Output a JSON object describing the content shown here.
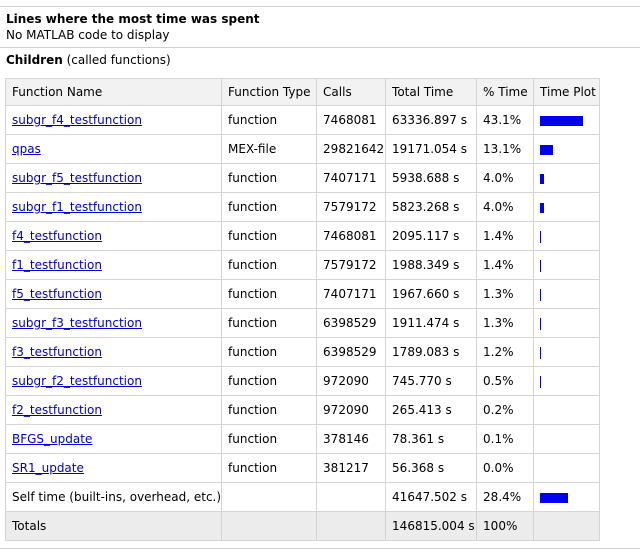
{
  "lines_section": {
    "heading": "Lines where the most time was spent",
    "message": "No MATLAB code to display"
  },
  "children_section": {
    "heading": "Children",
    "subheading": "(called functions)"
  },
  "table": {
    "headers": [
      "Function Name",
      "Function Type",
      "Calls",
      "Total Time",
      "% Time",
      "Time Plot"
    ],
    "rows": [
      {
        "name": "subgr_f4_testfunction",
        "type": "function",
        "calls": "7468081",
        "total": "63336.897 s",
        "pct": "43.1%",
        "plot": 43.1
      },
      {
        "name": "qpas",
        "type": "MEX-file",
        "calls": "29821642",
        "total": "19171.054 s",
        "pct": "13.1%",
        "plot": 13.1
      },
      {
        "name": "subgr_f5_testfunction",
        "type": "function",
        "calls": "7407171",
        "total": "5938.688 s",
        "pct": "4.0%",
        "plot": 4.0
      },
      {
        "name": "subgr_f1_testfunction",
        "type": "function",
        "calls": "7579172",
        "total": "5823.268 s",
        "pct": "4.0%",
        "plot": 4.0
      },
      {
        "name": "f4_testfunction",
        "type": "function",
        "calls": "7468081",
        "total": "2095.117 s",
        "pct": "1.4%",
        "plot": 1.4
      },
      {
        "name": "f1_testfunction",
        "type": "function",
        "calls": "7579172",
        "total": "1988.349 s",
        "pct": "1.4%",
        "plot": 1.4
      },
      {
        "name": "f5_testfunction",
        "type": "function",
        "calls": "7407171",
        "total": "1967.660 s",
        "pct": "1.3%",
        "plot": 1.3
      },
      {
        "name": "subgr_f3_testfunction",
        "type": "function",
        "calls": "6398529",
        "total": "1911.474 s",
        "pct": "1.3%",
        "plot": 1.3
      },
      {
        "name": "f3_testfunction",
        "type": "function",
        "calls": "6398529",
        "total": "1789.083 s",
        "pct": "1.2%",
        "plot": 1.2
      },
      {
        "name": "subgr_f2_testfunction",
        "type": "function",
        "calls": "972090",
        "total": "745.770 s",
        "pct": "0.5%",
        "plot": 0.5
      },
      {
        "name": "f2_testfunction",
        "type": "function",
        "calls": "972090",
        "total": "265.413 s",
        "pct": "0.2%",
        "plot": 0.2
      },
      {
        "name": "BFGS_update",
        "type": "function",
        "calls": "378146",
        "total": "78.361 s",
        "pct": "0.1%",
        "plot": 0.1
      },
      {
        "name": "SR1_update",
        "type": "function",
        "calls": "381217",
        "total": "56.368 s",
        "pct": "0.0%",
        "plot": 0.0
      }
    ],
    "self_time": {
      "label": "Self time (built-ins, overhead, etc.)",
      "total": "41647.502 s",
      "pct": "28.4%",
      "plot": 28.4
    },
    "totals": {
      "label": "Totals",
      "total": "146815.004 s",
      "pct": "100%"
    }
  },
  "colors": {
    "bar": "#0000ee",
    "link": "#0000cc"
  }
}
